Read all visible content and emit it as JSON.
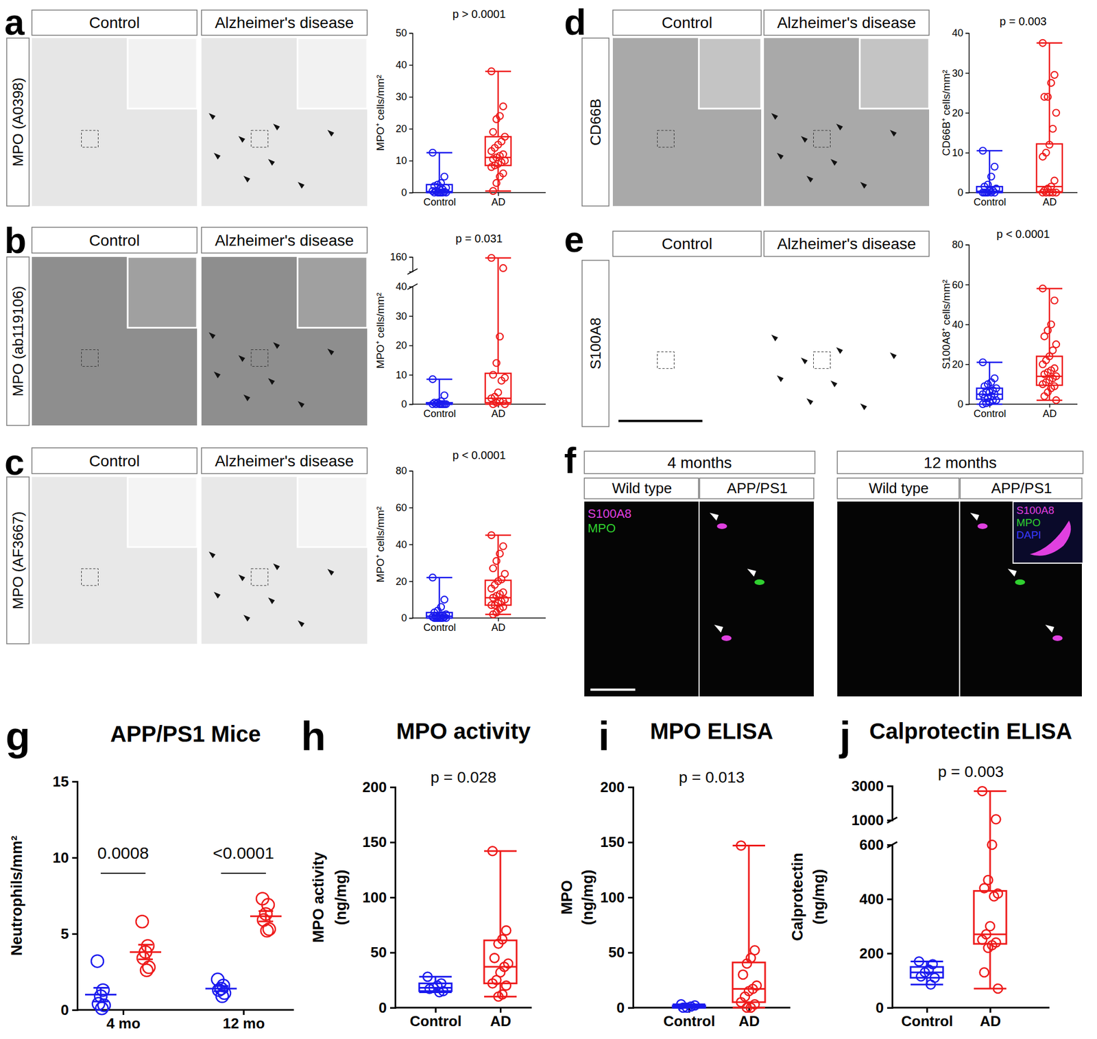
{
  "chart_data": [
    {
      "type": "box",
      "title": "p > 0.0001",
      "y_label": "MPO⁺ cells/mm²",
      "categories": [
        "Control",
        "AD"
      ],
      "colors": [
        "#1a1aee",
        "#ee1a1a"
      ],
      "ylim": [
        0,
        50
      ],
      "yticks": [
        0,
        10,
        20,
        30,
        40,
        50
      ],
      "boxes": [
        {
          "min": 0,
          "q1": 0,
          "median": 0.3,
          "q3": 2.5,
          "max": 12.5
        },
        {
          "min": 0.5,
          "q1": 8.5,
          "median": 11,
          "q3": 17.5,
          "max": 38
        }
      ],
      "points": [
        [
          12.5,
          5,
          3,
          2.5,
          2,
          1.5,
          1,
          1,
          0.5,
          0.5,
          0.2,
          0,
          0,
          0,
          0,
          0,
          0
        ],
        [
          38,
          27,
          24,
          23,
          19,
          17.5,
          16,
          15,
          14,
          13,
          12,
          11.5,
          11,
          10.5,
          10,
          9.5,
          9,
          8.5,
          8,
          6,
          5,
          3,
          0.5
        ]
      ]
    },
    {
      "type": "box",
      "title": "p = 0.031",
      "y_label": "MPO⁺ cells/mm²",
      "categories": [
        "Control",
        "AD"
      ],
      "colors": [
        "#1a1aee",
        "#ee1a1a"
      ],
      "ylim": [
        0,
        40
      ],
      "yticks": [
        0,
        10,
        20,
        30,
        40
      ],
      "ylim_break": [
        130,
        160
      ],
      "yticks_break": [
        160
      ],
      "boxes": [
        {
          "min": 0,
          "q1": 0,
          "median": 0,
          "q3": 0.5,
          "max": 8.5
        },
        {
          "min": 0,
          "q1": 0.5,
          "median": 2,
          "q3": 10.5,
          "max": 158
        }
      ],
      "points": [
        [
          8.5,
          3,
          1,
          0.5,
          0.5,
          0,
          0,
          0,
          0,
          0,
          0,
          0
        ],
        [
          158,
          137,
          23,
          14,
          10,
          9,
          8,
          4,
          2.5,
          2,
          1,
          1,
          0.5,
          0,
          0
        ]
      ]
    },
    {
      "type": "box",
      "title": "p < 0.0001",
      "y_label": "MPO⁺ cells/mm²",
      "categories": [
        "Control",
        "AD"
      ],
      "colors": [
        "#1a1aee",
        "#ee1a1a"
      ],
      "ylim": [
        0,
        80
      ],
      "yticks": [
        0,
        20,
        40,
        60,
        80
      ],
      "boxes": [
        {
          "min": 0,
          "q1": 0,
          "median": 1,
          "q3": 3,
          "max": 22
        },
        {
          "min": 2,
          "q1": 7,
          "median": 11,
          "q3": 20.5,
          "max": 45
        }
      ],
      "points": [
        [
          22,
          10,
          6,
          4,
          3,
          2,
          1.5,
          1,
          1,
          0.5,
          0.5,
          0,
          0,
          0,
          0,
          0,
          0,
          0
        ],
        [
          45,
          39,
          35,
          31,
          27,
          24,
          21,
          20,
          18,
          16,
          14,
          13,
          12,
          11,
          10,
          9,
          8,
          7,
          7,
          6,
          5,
          3,
          2
        ]
      ]
    },
    {
      "type": "box",
      "title": "p = 0.003",
      "y_label": "CD66B⁺ cells/mm²",
      "categories": [
        "Control",
        "AD"
      ],
      "colors": [
        "#1a1aee",
        "#ee1a1a"
      ],
      "ylim": [
        0,
        40
      ],
      "yticks": [
        0,
        10,
        20,
        30,
        40
      ],
      "boxes": [
        {
          "min": 0,
          "q1": 0,
          "median": 0.3,
          "q3": 1.5,
          "max": 10.5
        },
        {
          "min": 0,
          "q1": 0.2,
          "median": 1.5,
          "q3": 12.2,
          "max": 37.5
        }
      ],
      "points": [
        [
          10.5,
          6.5,
          4,
          2,
          1.5,
          1,
          0.5,
          0.5,
          0,
          0,
          0,
          0,
          0,
          0
        ],
        [
          37.5,
          29.5,
          27.5,
          24,
          24,
          20,
          16,
          12,
          10,
          9,
          3,
          1.5,
          1,
          0.5,
          0,
          0,
          0,
          0,
          0
        ]
      ]
    },
    {
      "type": "box",
      "title": "p < 0.0001",
      "y_label": "S100A8⁺ cells/mm²",
      "categories": [
        "Control",
        "AD"
      ],
      "colors": [
        "#1a1aee",
        "#ee1a1a"
      ],
      "ylim": [
        0,
        80
      ],
      "yticks": [
        0,
        20,
        40,
        60,
        80
      ],
      "boxes": [
        {
          "min": 0,
          "q1": 2.5,
          "median": 5,
          "q3": 8,
          "max": 21
        },
        {
          "min": 2,
          "q1": 9.5,
          "median": 14,
          "q3": 24,
          "max": 58
        }
      ],
      "points": [
        [
          21,
          13,
          11,
          10,
          9,
          8,
          7,
          6,
          6,
          5,
          5,
          4,
          3,
          3,
          2,
          2,
          1,
          0.5,
          0
        ],
        [
          58,
          52,
          40,
          37,
          34,
          30,
          27,
          24,
          22,
          20,
          18,
          17,
          16,
          15,
          14,
          13,
          12,
          11,
          10,
          9,
          8,
          6,
          4,
          2
        ]
      ]
    },
    {
      "type": "scatter",
      "panel": "g",
      "title": "APP/PS1 Mice",
      "y_label": "Neutrophils/mm²",
      "categories": [
        "4 mo",
        "12 mo"
      ],
      "ylim": [
        0,
        15
      ],
      "yticks": [
        0,
        5,
        10,
        15
      ],
      "series": [
        {
          "color": "#1a1aee",
          "points": [
            [
              3.2,
              1.3,
              0.9,
              0.4,
              0.3,
              0.1
            ],
            [
              2.0,
              1.6,
              1.4,
              1.3,
              1.1,
              0.9
            ]
          ],
          "mean": [
            1.0,
            1.4
          ],
          "sem": [
            0.45,
            0.17
          ]
        },
        {
          "color": "#ee1a1a",
          "points": [
            [
              5.8,
              4.2,
              3.8,
              3.4,
              2.8,
              2.6
            ],
            [
              7.3,
              6.9,
              6.3,
              5.9,
              5.3,
              5.2
            ]
          ],
          "mean": [
            3.8,
            6.15
          ],
          "sem": [
            0.48,
            0.34
          ]
        }
      ],
      "annotations": [
        {
          "text": "0.0008",
          "category": "4 mo"
        },
        {
          "text": "<0.0001",
          "category": "12 mo"
        }
      ]
    },
    {
      "type": "box",
      "panel": "h",
      "title": "MPO activity",
      "subtitle": "p = 0.028",
      "y_label": [
        "MPO activity",
        "(ng/mg)"
      ],
      "categories": [
        "Control",
        "AD"
      ],
      "colors": [
        "#1a1aee",
        "#ee1a1a"
      ],
      "ylim": [
        0,
        200
      ],
      "yticks": [
        0,
        50,
        100,
        150,
        200
      ],
      "boxes": [
        {
          "min": 14,
          "q1": 15,
          "median": 18,
          "q3": 22,
          "max": 28
        },
        {
          "min": 10,
          "q1": 22,
          "median": 37,
          "q3": 61,
          "max": 142
        }
      ],
      "points": [
        [
          28,
          22,
          20,
          18,
          17,
          15,
          14
        ],
        [
          142,
          70,
          62,
          58,
          45,
          40,
          37,
          32,
          25,
          22,
          20,
          12,
          10
        ]
      ]
    },
    {
      "type": "box",
      "panel": "i",
      "title": "MPO ELISA",
      "subtitle": "p = 0.013",
      "y_label": [
        "MPO",
        "(ng/mg)"
      ],
      "categories": [
        "Control",
        "AD"
      ],
      "colors": [
        "#1a1aee",
        "#ee1a1a"
      ],
      "ylim": [
        0,
        200
      ],
      "yticks": [
        0,
        50,
        100,
        150,
        200
      ],
      "boxes": [
        {
          "min": 0,
          "q1": 0,
          "median": 1,
          "q3": 2,
          "max": 3
        },
        {
          "min": 0,
          "q1": 5,
          "median": 17,
          "q3": 41,
          "max": 147
        }
      ],
      "points": [
        [
          3,
          2,
          1,
          0,
          0
        ],
        [
          147,
          52,
          45,
          40,
          30,
          20,
          17,
          15,
          10,
          5,
          3,
          0,
          0
        ]
      ]
    },
    {
      "type": "box",
      "panel": "j",
      "title": "Calprotectin ELISA",
      "subtitle": "p = 0.003",
      "y_label": [
        "Calprotectin",
        "(ng/mg)"
      ],
      "categories": [
        "Control",
        "AD"
      ],
      "colors": [
        "#1a1aee",
        "#ee1a1a"
      ],
      "ylim": [
        0,
        600
      ],
      "yticks": [
        0,
        200,
        400,
        600
      ],
      "ylim_break": [
        1000,
        3000
      ],
      "yticks_break": [
        1000,
        3000
      ],
      "boxes": [
        {
          "min": 85,
          "q1": 110,
          "median": 130,
          "q3": 150,
          "max": 170
        },
        {
          "min": 70,
          "q1": 235,
          "median": 270,
          "q3": 430,
          "max": 2700
        }
      ],
      "points": [
        [
          170,
          160,
          140,
          130,
          115,
          110,
          85
        ],
        [
          2700,
          1050,
          600,
          470,
          440,
          420,
          410,
          300,
          270,
          250,
          240,
          230,
          220,
          130,
          70
        ]
      ]
    }
  ],
  "image_panels": [
    {
      "panel": "a",
      "row_label": "MPO (A0398)",
      "columns": [
        "Control",
        "Alzheimer's disease"
      ]
    },
    {
      "panel": "b",
      "row_label": "MPO (ab119106)",
      "columns": [
        "Control",
        "Alzheimer's disease"
      ]
    },
    {
      "panel": "c",
      "row_label": "MPO (AF3667)",
      "columns": [
        "Control",
        "Alzheimer's disease"
      ]
    },
    {
      "panel": "d",
      "row_label": "CD66B",
      "columns": [
        "Control",
        "Alzheimer's disease"
      ]
    },
    {
      "panel": "e",
      "row_label": "S100A8",
      "columns": [
        "Control",
        "Alzheimer's disease"
      ]
    }
  ],
  "panel_f": {
    "panel": "f",
    "groups": [
      {
        "label": "4 months",
        "columns": [
          "Wild type",
          "APP/PS1"
        ]
      },
      {
        "label": "12 months",
        "columns": [
          "Wild type",
          "APP/PS1"
        ]
      }
    ],
    "stains": [
      {
        "text": "S100A8",
        "color": "#e040e0"
      },
      {
        "text": "MPO",
        "color": "#30d030"
      }
    ],
    "inset_stains": [
      {
        "text": "S100A8",
        "color": "#e040e0"
      },
      {
        "text": "MPO",
        "color": "#30d030"
      },
      {
        "text": "DAPI",
        "color": "#3a3aff"
      }
    ]
  }
}
